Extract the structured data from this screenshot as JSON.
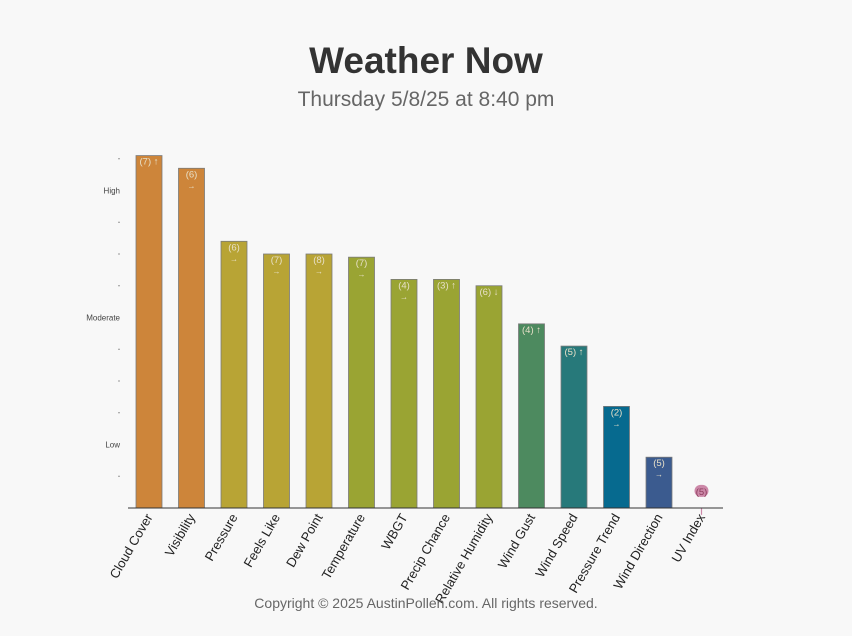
{
  "header": {
    "title": "Weather Now",
    "subtitle": "Thursday 5/8/25 at 8:40 pm"
  },
  "footer": {
    "copyright": "Copyright © 2025 AustinPollen.com.  All rights reserved."
  },
  "chart_data": {
    "type": "bar",
    "title": "",
    "xlabel": "",
    "ylabel": "",
    "ylim": [
      0,
      12
    ],
    "y_tick_labels": [
      {
        "value": 2,
        "label": "Low"
      },
      {
        "value": 6,
        "label": "Moderate"
      },
      {
        "value": 10,
        "label": "High"
      }
    ],
    "grid": false,
    "categories": [
      "Cloud Cover",
      "Visibility",
      "Pressure",
      "Feels Like",
      "Dew Point",
      "Temperature",
      "WBGT",
      "Precip Chance",
      "Relative Humidity",
      "Wind Gust",
      "Wind Speed",
      "Pressure Trend",
      "Wind Direction",
      "UV Index"
    ],
    "values": [
      11.1,
      10.7,
      8.4,
      8.0,
      8.0,
      7.9,
      7.2,
      7.2,
      7.0,
      5.8,
      5.1,
      3.2,
      1.6,
      0.1
    ],
    "data_labels": [
      {
        "rank": "(7)",
        "arrow": "↑"
      },
      {
        "rank": "(6)",
        "arrow": "→"
      },
      {
        "rank": "(6)",
        "arrow": "→"
      },
      {
        "rank": "(7)",
        "arrow": "→"
      },
      {
        "rank": "(8)",
        "arrow": "→"
      },
      {
        "rank": "(7)",
        "arrow": "→"
      },
      {
        "rank": "(4)",
        "arrow": "→"
      },
      {
        "rank": "(3)",
        "arrow": "↑"
      },
      {
        "rank": "(6)",
        "arrow": "↓"
      },
      {
        "rank": "(4)",
        "arrow": "↑"
      },
      {
        "rank": "(5)",
        "arrow": "↑"
      },
      {
        "rank": "(2)",
        "arrow": "→"
      },
      {
        "rank": "(5)",
        "arrow": "→"
      },
      {
        "rank": "(5)",
        "arrow": ""
      }
    ],
    "colors": [
      "#cd853a",
      "#cd853a",
      "#b8a435",
      "#b8a435",
      "#b8a435",
      "#9aa433",
      "#9aa433",
      "#9aa433",
      "#9aa433",
      "#4d8a5f",
      "#27797a",
      "#066a8f",
      "#3b5b8f",
      "#cc88a8"
    ]
  }
}
